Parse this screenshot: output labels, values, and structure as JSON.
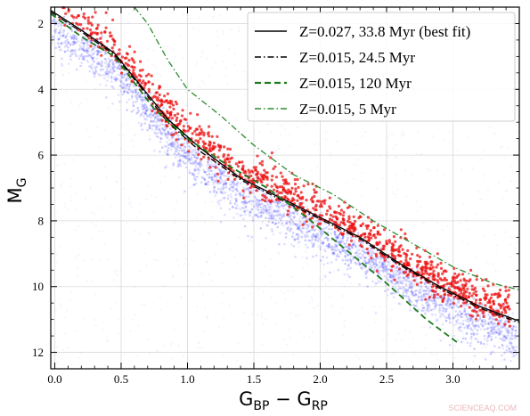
{
  "chart_data": {
    "type": "scatter",
    "xlabel": "G_BP − G_RP",
    "ylabel": "M_G",
    "xlim": [
      -0.03,
      3.5
    ],
    "ylim": [
      12.5,
      1.5
    ],
    "y_inverted": true,
    "grid": true,
    "legend_position": "top-right",
    "x_ticks": [
      "0.0",
      "0.5",
      "1.0",
      "1.5",
      "2.0",
      "2.5",
      "3.0"
    ],
    "y_ticks": [
      "2",
      "4",
      "6",
      "8",
      "10",
      "12"
    ],
    "series": [
      {
        "name": "Z=0.027, 33.8 Myr (best fit)",
        "style": "solid",
        "color": "#000000",
        "x": [
          -0.03,
          0.2,
          0.45,
          0.65,
          0.85,
          1.1,
          1.4,
          1.7,
          2.0,
          2.3,
          2.6,
          2.9,
          3.2,
          3.5
        ],
        "y": [
          1.6,
          2.2,
          2.9,
          3.9,
          4.9,
          5.8,
          6.7,
          7.3,
          7.9,
          8.5,
          9.3,
          10.0,
          10.6,
          11.05
        ]
      },
      {
        "name": "Z=0.015, 24.5 Myr",
        "style": "dashdot",
        "color": "#000000",
        "x": [
          -0.03,
          0.2,
          0.45,
          0.65,
          0.85,
          1.1,
          1.4,
          1.7,
          2.0,
          2.3,
          2.6,
          2.9,
          3.2,
          3.5
        ],
        "y": [
          1.65,
          2.25,
          2.95,
          3.95,
          5.0,
          5.9,
          6.75,
          7.35,
          7.95,
          8.55,
          9.35,
          10.05,
          10.65,
          11.1
        ]
      },
      {
        "name": "Z=0.015, 120 Myr",
        "style": "dashed",
        "color": "#1a7a1a",
        "x": [
          -0.03,
          0.2,
          0.45,
          0.6,
          0.75,
          1.0,
          1.3,
          1.6,
          1.9,
          2.2,
          2.5,
          2.8,
          3.05
        ],
        "y": [
          1.7,
          2.4,
          3.0,
          3.8,
          4.6,
          5.5,
          6.3,
          7.0,
          7.9,
          8.9,
          9.9,
          11.0,
          11.75
        ]
      },
      {
        "name": "Z=0.015, 5 Myr",
        "style": "dashdot",
        "color": "#2e8b2e",
        "x": [
          0.6,
          0.7,
          0.85,
          1.0,
          1.25,
          1.5,
          1.8,
          2.1,
          2.4,
          2.7,
          3.0,
          3.3,
          3.5
        ],
        "y": [
          1.5,
          2.0,
          3.1,
          4.0,
          4.8,
          5.7,
          6.6,
          7.2,
          8.0,
          8.7,
          9.4,
          9.9,
          10.1
        ]
      }
    ]
  },
  "watermark": "SCIENCEAQ.COM"
}
